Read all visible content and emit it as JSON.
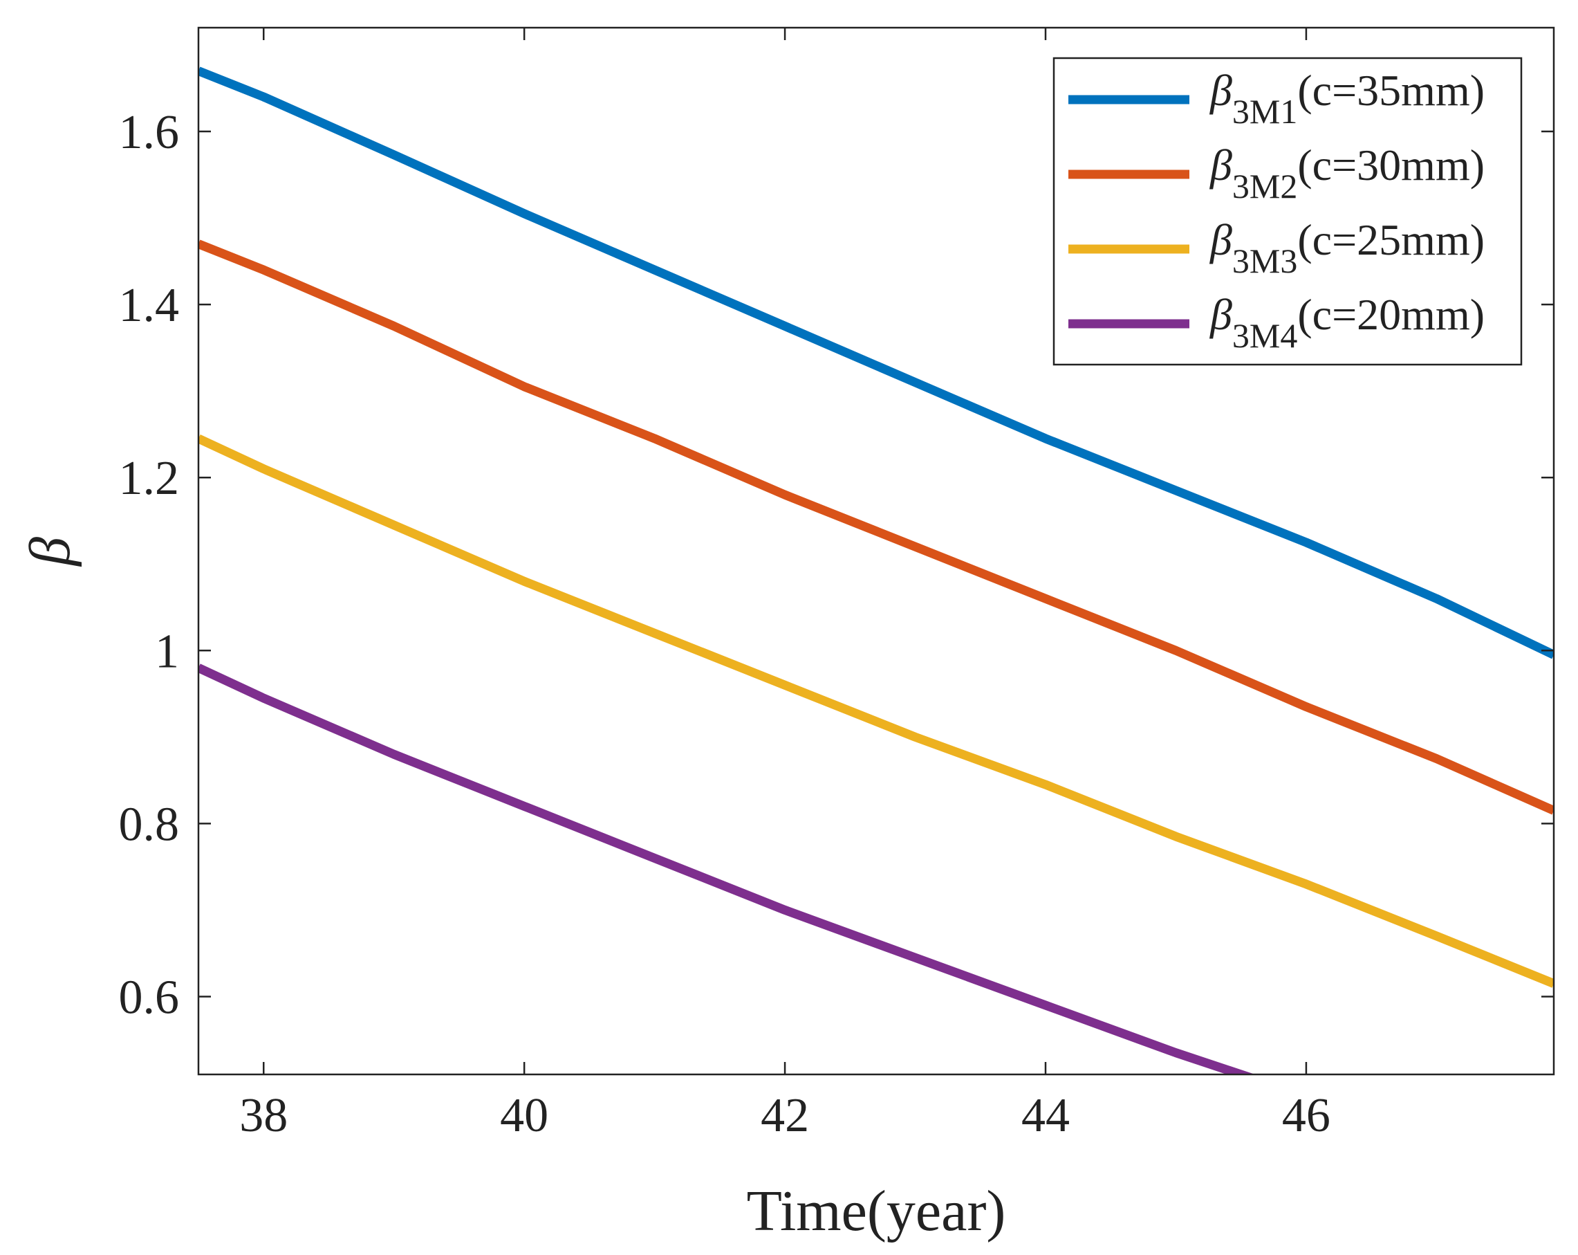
{
  "chart_data": {
    "type": "line",
    "title": "",
    "xlabel": "Time(year)",
    "ylabel": "β",
    "xlim": [
      37.5,
      47.9
    ],
    "ylim": [
      0.51,
      1.72
    ],
    "xticks": [
      38,
      40,
      42,
      44,
      46
    ],
    "xtick_labels": [
      "38",
      "40",
      "42",
      "44",
      "46"
    ],
    "yticks": [
      0.6,
      0.8,
      1.0,
      1.2,
      1.4,
      1.6
    ],
    "ytick_labels": [
      "0.6",
      "0.8",
      "1",
      "1.2",
      "1.4",
      "1.6"
    ],
    "grid": false,
    "legend_position": "top-right",
    "series": [
      {
        "name": "β3M1(c=35mm)",
        "symbol": "β",
        "subscript": "3M1",
        "suffix": "(c=35mm)",
        "color": "#0072BD",
        "x": [
          37.5,
          38,
          39,
          40,
          41,
          42,
          43,
          44,
          45,
          46,
          47,
          47.9
        ],
        "y": [
          1.67,
          1.64,
          1.573,
          1.505,
          1.44,
          1.375,
          1.31,
          1.245,
          1.185,
          1.125,
          1.06,
          0.995
        ]
      },
      {
        "name": "β3M2(c=30mm)",
        "symbol": "β",
        "subscript": "3M2",
        "suffix": "(c=30mm)",
        "color": "#D95319",
        "x": [
          37.5,
          38,
          39,
          40,
          41,
          42,
          43,
          44,
          45,
          46,
          47,
          47.9
        ],
        "y": [
          1.47,
          1.44,
          1.375,
          1.305,
          1.245,
          1.18,
          1.12,
          1.06,
          1.0,
          0.935,
          0.875,
          0.815
        ]
      },
      {
        "name": "β3M3(c=25mm)",
        "symbol": "β",
        "subscript": "3M3",
        "suffix": "(c=25mm)",
        "color": "#EDB120",
        "x": [
          37.5,
          38,
          39,
          40,
          41,
          42,
          43,
          44,
          45,
          46,
          47,
          47.9
        ],
        "y": [
          1.245,
          1.21,
          1.145,
          1.08,
          1.02,
          0.96,
          0.9,
          0.845,
          0.785,
          0.73,
          0.67,
          0.615
        ]
      },
      {
        "name": "β3M4(c=20mm)",
        "symbol": "β",
        "subscript": "3M4",
        "suffix": "(c=20mm)",
        "color": "#7E2F8E",
        "x": [
          37.5,
          38,
          39,
          40,
          41,
          42,
          43,
          44,
          45,
          45.6
        ],
        "y": [
          0.98,
          0.945,
          0.88,
          0.82,
          0.76,
          0.7,
          0.645,
          0.59,
          0.535,
          0.505
        ]
      }
    ]
  }
}
